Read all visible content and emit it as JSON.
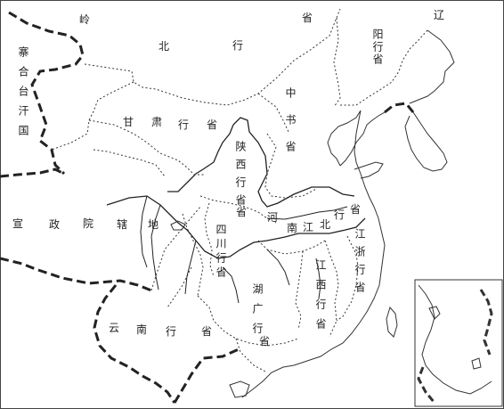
{
  "map": {
    "regions": {
      "lingbei_ling": "岭",
      "lingbei_bei": "北",
      "lingbei_xing": "行",
      "lingbei_sheng": "省",
      "liaoyang": "辽阳行省",
      "zhongshu": "中书省",
      "gansu_gan": "甘",
      "gansu_su": "肃",
      "gansu_xing": "行",
      "gansu_sheng": "省",
      "shaanxi": "陕西行省",
      "henan_he": "河",
      "henan_nan": "南",
      "henan_jiang": "江",
      "henan_bei": "北",
      "henan_xing": "行",
      "henan_sheng": "省",
      "sichuan": "四川行省",
      "jiangzhe": "江浙行省",
      "jiangxi": "江西行省",
      "huguang": "湖广行省",
      "yunnan_yun": "云",
      "yunnan_nan": "南",
      "yunnan_xing": "行",
      "yunnan_sheng": "省",
      "xuanzheng_xuan": "宣",
      "xuanzheng_zheng": "政",
      "xuanzheng_yuan": "院",
      "xuanzheng_xia": "辖",
      "xuanzheng_di": "地",
      "saihe": "寨合台汗国"
    }
  }
}
